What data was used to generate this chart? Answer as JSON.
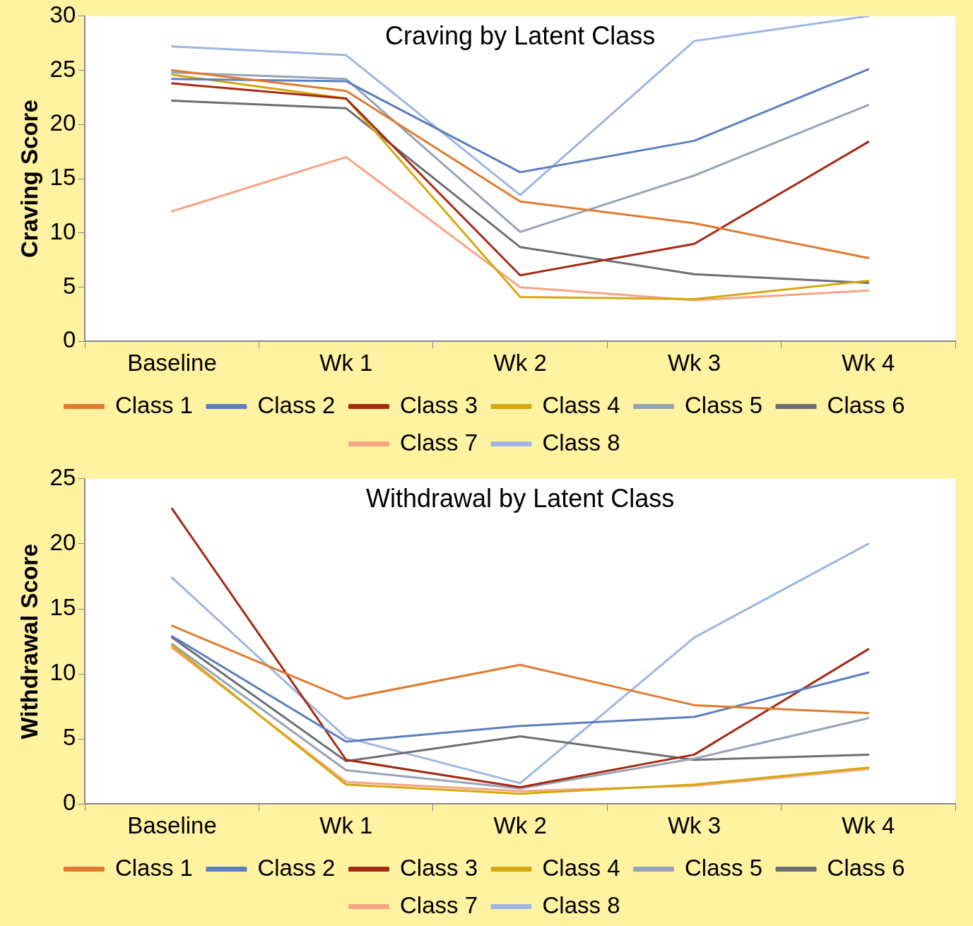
{
  "chart_data": [
    {
      "type": "line",
      "title": "Craving by Latent Class",
      "ylabel": "Craving Score",
      "categories": [
        "Baseline",
        "Wk 1",
        "Wk 2",
        "Wk 3",
        "Wk 4"
      ],
      "ylim": [
        0,
        30
      ],
      "yticks": [
        0,
        5,
        10,
        15,
        20,
        25,
        30
      ],
      "legend": "bottom",
      "marker": "none",
      "line_style": "solid",
      "series": [
        {
          "name": "Class 1",
          "color": "#e07a2e",
          "values": [
            25.0,
            23.1,
            12.9,
            10.9,
            7.7
          ]
        },
        {
          "name": "Class 2",
          "color": "#5b7fc0",
          "values": [
            24.2,
            24.0,
            15.6,
            18.5,
            25.1
          ]
        },
        {
          "name": "Class 3",
          "color": "#a52a14",
          "values": [
            23.8,
            22.4,
            6.1,
            9.0,
            18.4
          ]
        },
        {
          "name": "Class 4",
          "color": "#d4a90e",
          "values": [
            24.6,
            22.4,
            4.1,
            3.9,
            5.6
          ]
        },
        {
          "name": "Class 5",
          "color": "#97a3b8",
          "values": [
            24.8,
            24.2,
            10.1,
            15.3,
            21.8
          ]
        },
        {
          "name": "Class 6",
          "color": "#6b6e73",
          "values": [
            22.2,
            21.5,
            8.7,
            6.2,
            5.4
          ]
        },
        {
          "name": "Class 7",
          "color": "#f7a482",
          "values": [
            12.0,
            17.0,
            5.0,
            3.8,
            4.7
          ]
        },
        {
          "name": "Class 8",
          "color": "#9fb5e3",
          "values": [
            27.2,
            26.4,
            13.5,
            27.7,
            30.0
          ]
        }
      ]
    },
    {
      "type": "line",
      "title": "Withdrawal by Latent Class",
      "ylabel": "Withdrawal Score",
      "categories": [
        "Baseline",
        "Wk 1",
        "Wk 2",
        "Wk 3",
        "Wk 4"
      ],
      "ylim": [
        0,
        25
      ],
      "yticks": [
        0,
        5,
        10,
        15,
        20,
        25
      ],
      "legend": "bottom",
      "marker": "none",
      "line_style": "solid",
      "series": [
        {
          "name": "Class 1",
          "color": "#e07a2e",
          "values": [
            13.7,
            8.1,
            10.7,
            7.6,
            7.0
          ]
        },
        {
          "name": "Class 2",
          "color": "#5b7fc0",
          "values": [
            12.9,
            4.8,
            6.0,
            6.7,
            10.1
          ]
        },
        {
          "name": "Class 3",
          "color": "#a52a14",
          "values": [
            22.7,
            3.4,
            1.3,
            3.8,
            11.9
          ]
        },
        {
          "name": "Class 4",
          "color": "#d4a90e",
          "values": [
            12.2,
            1.5,
            0.8,
            1.5,
            2.8
          ]
        },
        {
          "name": "Class 5",
          "color": "#97a3b8",
          "values": [
            12.3,
            2.6,
            1.2,
            3.5,
            6.6
          ]
        },
        {
          "name": "Class 6",
          "color": "#6b6e73",
          "values": [
            12.8,
            3.3,
            5.2,
            3.4,
            3.8
          ]
        },
        {
          "name": "Class 7",
          "color": "#f7a482",
          "values": [
            12.0,
            1.7,
            1.0,
            1.4,
            2.7
          ]
        },
        {
          "name": "Class 8",
          "color": "#9fb5e3",
          "values": [
            17.4,
            5.1,
            1.6,
            12.8,
            20.0
          ]
        }
      ]
    }
  ]
}
